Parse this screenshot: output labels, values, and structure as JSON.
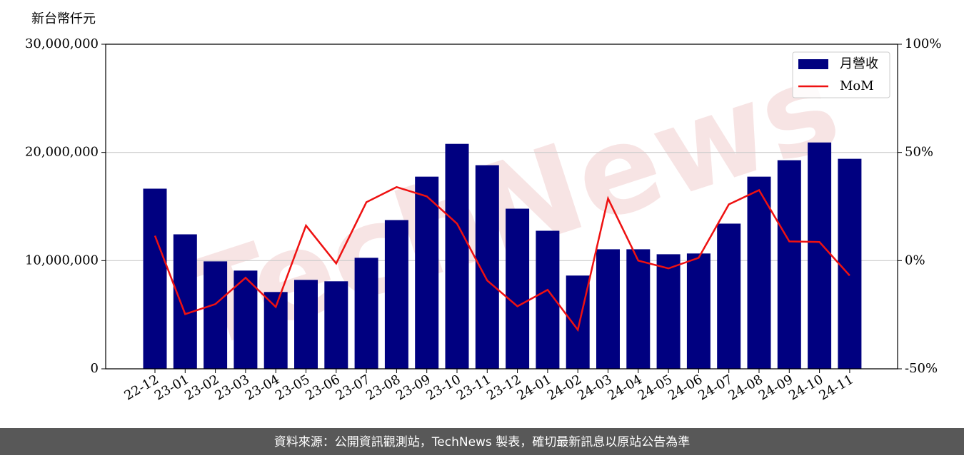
{
  "chart_data": {
    "type": "bar",
    "y_label": "新台幣仟元",
    "watermark": "TechNews",
    "footer": "資料來源：公開資訊觀測站，TechNews 製表，確切最新訊息以原站公告為準",
    "categories": [
      "22-12",
      "23-01",
      "23-02",
      "23-03",
      "23-04",
      "23-05",
      "23-06",
      "23-07",
      "23-08",
      "23-09",
      "23-10",
      "23-11",
      "23-12",
      "24-01",
      "24-02",
      "24-03",
      "24-04",
      "24-05",
      "24-06",
      "24-07",
      "24-08",
      "24-09",
      "24-10",
      "24-11"
    ],
    "series": [
      {
        "name": "月營收",
        "type": "bar",
        "color": "#000080",
        "values": [
          16650000,
          12430000,
          9930000,
          9080000,
          7100000,
          8220000,
          8090000,
          10260000,
          13750000,
          17760000,
          20790000,
          18820000,
          14800000,
          12760000,
          8620000,
          11050000,
          11050000,
          10590000,
          10660000,
          13420000,
          17760000,
          19280000,
          20920000,
          19410000
        ]
      },
      {
        "name": "MoM",
        "type": "line",
        "axis": "y2",
        "color": "#ee1111",
        "values": [
          11.5,
          -24.7,
          -20.1,
          -7.9,
          -21.4,
          16.2,
          -1.3,
          27,
          34,
          29.7,
          17.1,
          -9.2,
          -21.1,
          -13.5,
          -32,
          28.7,
          0,
          -3.6,
          1.3,
          26,
          32.6,
          8.9,
          8.6,
          -6.9
        ]
      }
    ],
    "ylim": [
      0,
      30000000
    ],
    "yticks": [
      0,
      {
        "value": 10000000,
        "label": "10,000,000"
      },
      {
        "value": 20000000,
        "label": "20,000,000"
      },
      {
        "value": 30000000,
        "label": "30,000,000"
      }
    ],
    "y2lim": [
      -50,
      100
    ],
    "y2ticks": [
      {
        "value": -50,
        "label": "-50%"
      },
      {
        "value": 0,
        "label": "0%"
      },
      {
        "value": 50,
        "label": "50%"
      },
      {
        "value": 100,
        "label": "100%"
      }
    ],
    "grid": true,
    "legend": "upper right"
  }
}
